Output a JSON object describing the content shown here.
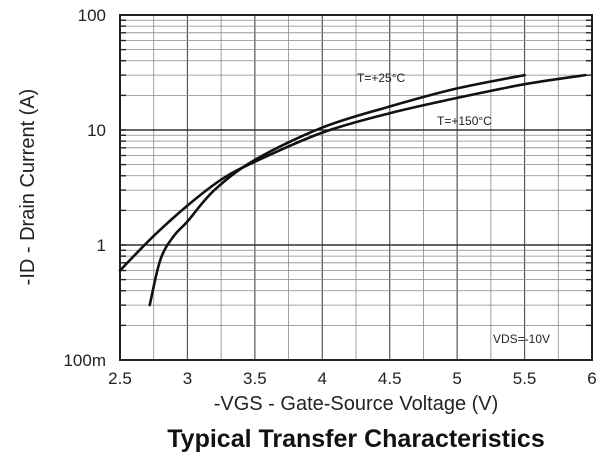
{
  "chart_data": {
    "type": "line",
    "title": "Typical Transfer Characteristics",
    "xlabel": "-VGS - Gate-Source Voltage (V)",
    "ylabel": "-ID - Drain Current (A)",
    "xlim": [
      2.5,
      6
    ],
    "ylim": [
      0.1,
      100
    ],
    "yscale": "log",
    "grid": true,
    "x_ticks": [
      "2.5",
      "3",
      "3.5",
      "4",
      "4.5",
      "5",
      "5.5",
      "6"
    ],
    "y_ticks": [
      "100m",
      "1",
      "10",
      "100"
    ],
    "annotation": "VDS=-10V",
    "series": [
      {
        "name": "T=+25°C",
        "x": [
          2.72,
          2.8,
          2.9,
          3.0,
          3.2,
          3.5,
          4.0,
          4.5,
          5.0,
          5.5
        ],
        "y": [
          0.3,
          0.75,
          1.2,
          1.6,
          3.0,
          5.5,
          10.5,
          16,
          23,
          30
        ]
      },
      {
        "name": "T=+150°C",
        "x": [
          2.5,
          2.75,
          3.0,
          3.25,
          3.5,
          4.0,
          4.5,
          5.0,
          5.5,
          5.95
        ],
        "y": [
          0.6,
          1.2,
          2.2,
          3.7,
          5.3,
          9.5,
          14,
          19,
          25,
          30
        ]
      }
    ]
  }
}
